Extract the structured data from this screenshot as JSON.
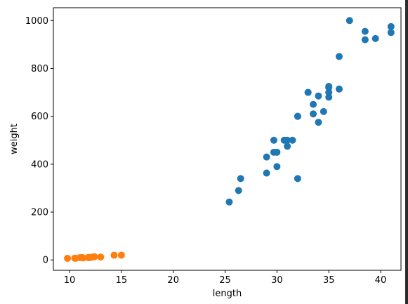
{
  "chart_data": {
    "type": "scatter",
    "title": "",
    "xlabel": "length",
    "ylabel": "weight",
    "xlim": [
      8.44,
      41.96
    ],
    "ylim": [
      -43.27,
      1053.67
    ],
    "xticks": [
      10,
      15,
      20,
      25,
      30,
      35,
      40
    ],
    "yticks": [
      0,
      200,
      400,
      600,
      800,
      1000
    ],
    "grid": false,
    "legend": "none",
    "series": [
      {
        "color": "#1f77b4",
        "points": [
          [
            25.4,
            242
          ],
          [
            26.3,
            290
          ],
          [
            26.5,
            340
          ],
          [
            29.0,
            363
          ],
          [
            29.0,
            430
          ],
          [
            29.7,
            450
          ],
          [
            29.7,
            500
          ],
          [
            30.0,
            390
          ],
          [
            30.0,
            450
          ],
          [
            30.7,
            500
          ],
          [
            31.0,
            475
          ],
          [
            31.0,
            500
          ],
          [
            31.5,
            500
          ],
          [
            32.0,
            340
          ],
          [
            32.0,
            600
          ],
          [
            32.0,
            600
          ],
          [
            33.0,
            700
          ],
          [
            33.0,
            700
          ],
          [
            33.5,
            610
          ],
          [
            33.5,
            650
          ],
          [
            34.0,
            575
          ],
          [
            34.0,
            685
          ],
          [
            34.5,
            620
          ],
          [
            35.0,
            680
          ],
          [
            35.0,
            700
          ],
          [
            35.0,
            725
          ],
          [
            35.0,
            720
          ],
          [
            36.0,
            714
          ],
          [
            36.0,
            850
          ],
          [
            37.0,
            1000
          ],
          [
            38.5,
            920
          ],
          [
            38.5,
            955
          ],
          [
            39.5,
            925
          ],
          [
            41.0,
            975
          ],
          [
            41.0,
            950
          ]
        ]
      },
      {
        "color": "#ff7f0e",
        "points": [
          [
            9.8,
            6.7
          ],
          [
            10.5,
            7.5
          ],
          [
            10.6,
            7.0
          ],
          [
            11.0,
            9.7
          ],
          [
            11.2,
            9.8
          ],
          [
            11.3,
            8.7
          ],
          [
            11.8,
            10.0
          ],
          [
            11.8,
            9.9
          ],
          [
            12.0,
            9.8
          ],
          [
            12.2,
            12.2
          ],
          [
            12.4,
            13.4
          ],
          [
            13.0,
            12.2
          ],
          [
            14.3,
            19.7
          ],
          [
            15.0,
            19.9
          ]
        ]
      }
    ]
  }
}
